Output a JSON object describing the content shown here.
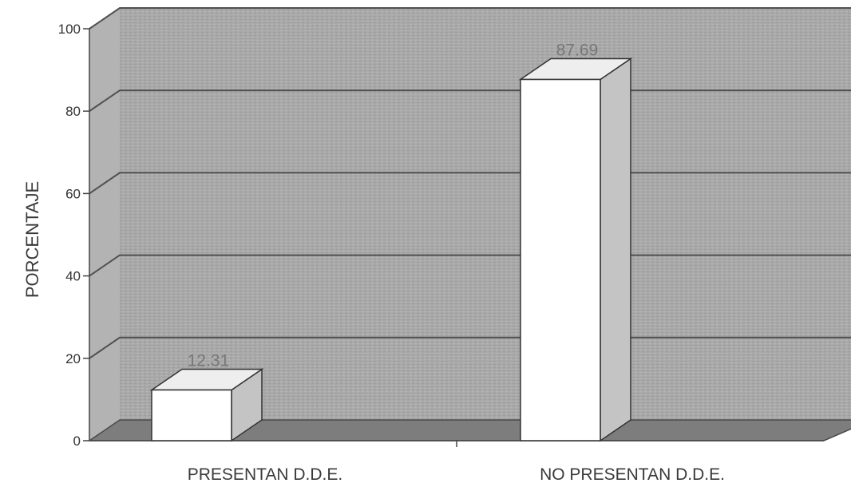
{
  "chart_data": {
    "type": "bar",
    "categories": [
      "PRESENTAN D.D.E.",
      "NO PRESENTAN D.D.E."
    ],
    "values": [
      12.31,
      87.69
    ],
    "data_labels": [
      "12.31",
      "87.69"
    ],
    "title": "",
    "xlabel": "",
    "ylabel": "PORCENTAJE",
    "ylim": [
      0,
      100
    ],
    "yticks": [
      "0",
      "20",
      "40",
      "60",
      "80",
      "100"
    ],
    "grid": true,
    "three_d": true,
    "colors": {
      "wall": "#a9a9a9",
      "floor": "#7d7d7d",
      "bar_front": "#ffffff",
      "bar_top": "#eeeeee",
      "bar_side": "#c4c4c4",
      "gridline": "#505050"
    }
  }
}
